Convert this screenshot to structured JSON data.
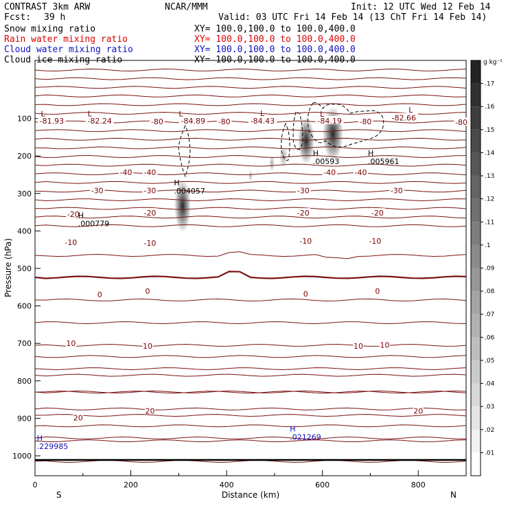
{
  "header": {
    "program": "CONTRAST  3km ARW",
    "center": "NCAR/MMM",
    "init": "Init: 12 UTC Wed 12 Feb 14",
    "fcst_label": "Fcst:",
    "fcst_value": "39 h",
    "valid": "Valid: 03 UTC Fri 14 Feb 14 (13 ChT Fri 14 Feb 14)",
    "fields": [
      {
        "name": "Snow mixing ratio",
        "xy": "XY= 100.0,100.0 to 100.0,400.0",
        "color": "#000000"
      },
      {
        "name": "Rain water mixing ratio",
        "xy": "XY= 100.0,100.0 to 100.0,400.0",
        "color": "#e00000"
      },
      {
        "name": "Cloud water mixing ratio",
        "xy": "XY= 100.0,100.0 to 100.0,400.0",
        "color": "#1010c0"
      },
      {
        "name": "Cloud ice mixing ratio",
        "xy": "XY= 100.0,100.0 to 100.0,400.0",
        "color": "#000000"
      }
    ]
  },
  "colorbar": {
    "unit": "g kg⁻¹",
    "ticks": [
      ".01",
      ".02",
      ".03",
      ".04",
      ".05",
      ".06",
      ".07",
      ".08",
      ".09",
      ".1",
      ".11",
      ".12",
      ".13",
      ".14",
      ".15",
      ".16",
      ".17"
    ]
  },
  "chart_data": {
    "type": "cross-section",
    "xlabel": "Distance (km)",
    "ylabel": "Pressure (hPa)",
    "xlim": [
      0,
      900
    ],
    "ylim": [
      1050,
      50
    ],
    "y_scale": "pressure",
    "x_ticks": [
      "0",
      "200",
      "400",
      "600",
      "800"
    ],
    "y_ticks": [
      "100",
      "200",
      "300",
      "400",
      "500",
      "600",
      "700",
      "800",
      "900",
      "1000"
    ],
    "left_end": "S",
    "right_end": "N",
    "temperature_labels": [
      {
        "text": "-81.93",
        "x": 35,
        "p": 106
      },
      {
        "text": "-82.24",
        "x": 135,
        "p": 106
      },
      {
        "text": "-80",
        "x": 255,
        "p": 108
      },
      {
        "text": "-84.89",
        "x": 330,
        "p": 106
      },
      {
        "text": "-80",
        "x": 395,
        "p": 108
      },
      {
        "text": "-84.43",
        "x": 475,
        "p": 106
      },
      {
        "text": "-84.19",
        "x": 615,
        "p": 106
      },
      {
        "text": "-80",
        "x": 690,
        "p": 108
      },
      {
        "text": "-82.66",
        "x": 770,
        "p": 98
      },
      {
        "text": "-80",
        "x": 890,
        "p": 110
      },
      {
        "text": "-40",
        "x": 190,
        "p": 244
      },
      {
        "text": "-40",
        "x": 240,
        "p": 244
      },
      {
        "text": "-40",
        "x": 615,
        "p": 244
      },
      {
        "text": "-40",
        "x": 680,
        "p": 244
      },
      {
        "text": "-30",
        "x": 130,
        "p": 292
      },
      {
        "text": "-30",
        "x": 240,
        "p": 292
      },
      {
        "text": "-30",
        "x": 560,
        "p": 292
      },
      {
        "text": "-30",
        "x": 755,
        "p": 292
      },
      {
        "text": "-20",
        "x": 80,
        "p": 355
      },
      {
        "text": "-20",
        "x": 240,
        "p": 352
      },
      {
        "text": "-20",
        "x": 560,
        "p": 352
      },
      {
        "text": "-20",
        "x": 715,
        "p": 352
      },
      {
        "text": "-10",
        "x": 75,
        "p": 430
      },
      {
        "text": "-10",
        "x": 240,
        "p": 432
      },
      {
        "text": "-10",
        "x": 565,
        "p": 427
      },
      {
        "text": "-10",
        "x": 710,
        "p": 427
      },
      {
        "text": "0",
        "x": 135,
        "p": 570
      },
      {
        "text": "0",
        "x": 235,
        "p": 560
      },
      {
        "text": "0",
        "x": 565,
        "p": 568
      },
      {
        "text": "0",
        "x": 715,
        "p": 560
      },
      {
        "text": "10",
        "x": 75,
        "p": 700
      },
      {
        "text": "10",
        "x": 235,
        "p": 707
      },
      {
        "text": "10",
        "x": 675,
        "p": 707
      },
      {
        "text": "10",
        "x": 730,
        "p": 704
      },
      {
        "text": "20",
        "x": 90,
        "p": 898
      },
      {
        "text": "20",
        "x": 240,
        "p": 880
      },
      {
        "text": "20",
        "x": 800,
        "p": 880
      }
    ],
    "extrema": [
      {
        "kind": "L",
        "x": 12,
        "p": 94,
        "color": "#7a0000"
      },
      {
        "kind": "L",
        "x": 110,
        "p": 94,
        "color": "#7a0000"
      },
      {
        "kind": "L",
        "x": 300,
        "p": 94,
        "color": "#7a0000"
      },
      {
        "kind": "L",
        "x": 470,
        "p": 93,
        "color": "#7a0000"
      },
      {
        "kind": "L",
        "x": 595,
        "p": 95,
        "color": "#7a0000"
      },
      {
        "kind": "L",
        "x": 780,
        "p": 84,
        "color": "#7a0000"
      },
      {
        "kind": "H",
        "label": ".004057",
        "x": 290,
        "p": 278,
        "color": "#000000"
      },
      {
        "kind": "H",
        "label": ".000779",
        "x": 90,
        "p": 365,
        "color": "#000000"
      },
      {
        "kind": "H",
        "label": ".00593",
        "x": 580,
        "p": 200,
        "color": "#000000"
      },
      {
        "kind": "H",
        "label": ".005961",
        "x": 695,
        "p": 200,
        "color": "#000000"
      },
      {
        "kind": "H",
        "label": ".229985",
        "x": 4,
        "p": 960,
        "color": "#1010c0"
      },
      {
        "kind": "H",
        "label": ".021269",
        "x": 532,
        "p": 935,
        "color": "#1010c0"
      }
    ]
  }
}
